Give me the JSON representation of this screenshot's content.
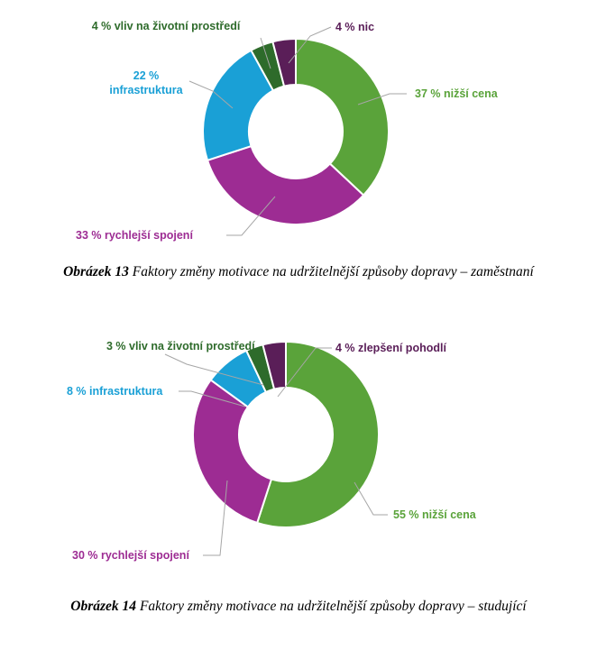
{
  "chart_data": [
    {
      "type": "pie",
      "donut": true,
      "categories": [
        "nižší cena",
        "rychlejší spojení",
        "infrastruktura",
        "vliv na životní prostředí",
        "nic"
      ],
      "values": [
        37,
        33,
        22,
        4,
        4
      ],
      "labels": [
        [
          "37 % nižší cena"
        ],
        [
          "33 % rychlejší spojení"
        ],
        [
          "22 %",
          "infrastruktura"
        ],
        [
          "4 % vliv na životní prostředí"
        ],
        [
          "4 % nic"
        ]
      ],
      "colors": [
        "#5aa33a",
        "#9d2c93",
        "#1aa0d6",
        "#2e6b2b",
        "#5a1e58"
      ],
      "label_colors": [
        "#5aa33a",
        "#9d2c93",
        "#1aa0d6",
        "#2e6b2b",
        "#5a1e58"
      ],
      "caption_number": "Obrázek 13",
      "caption_text": " Faktory změny motivace na udržitelnější způsoby dopravy – zaměstnaní"
    },
    {
      "type": "pie",
      "donut": true,
      "categories": [
        "nižší cena",
        "rychlejší spojení",
        "infrastruktura",
        "vliv na životní prostředí",
        "zlepšení pohodlí"
      ],
      "values": [
        55,
        30,
        8,
        3,
        4
      ],
      "labels": [
        [
          "55 % nižší cena"
        ],
        [
          "30 % rychlejší spojení"
        ],
        [
          "8 % infrastruktura"
        ],
        [
          "3 % vliv na životní prostředí"
        ],
        [
          "4 % zlepšení pohodlí"
        ]
      ],
      "colors": [
        "#5aa33a",
        "#9d2c93",
        "#1aa0d6",
        "#2e6b2b",
        "#5a1e58"
      ],
      "label_colors": [
        "#5aa33a",
        "#9d2c93",
        "#1aa0d6",
        "#2e6b2b",
        "#5a1e58"
      ],
      "caption_number": "Obrázek 14",
      "caption_text": " Faktory změny motivace na udržitelnější způsoby dopravy – studující"
    }
  ]
}
